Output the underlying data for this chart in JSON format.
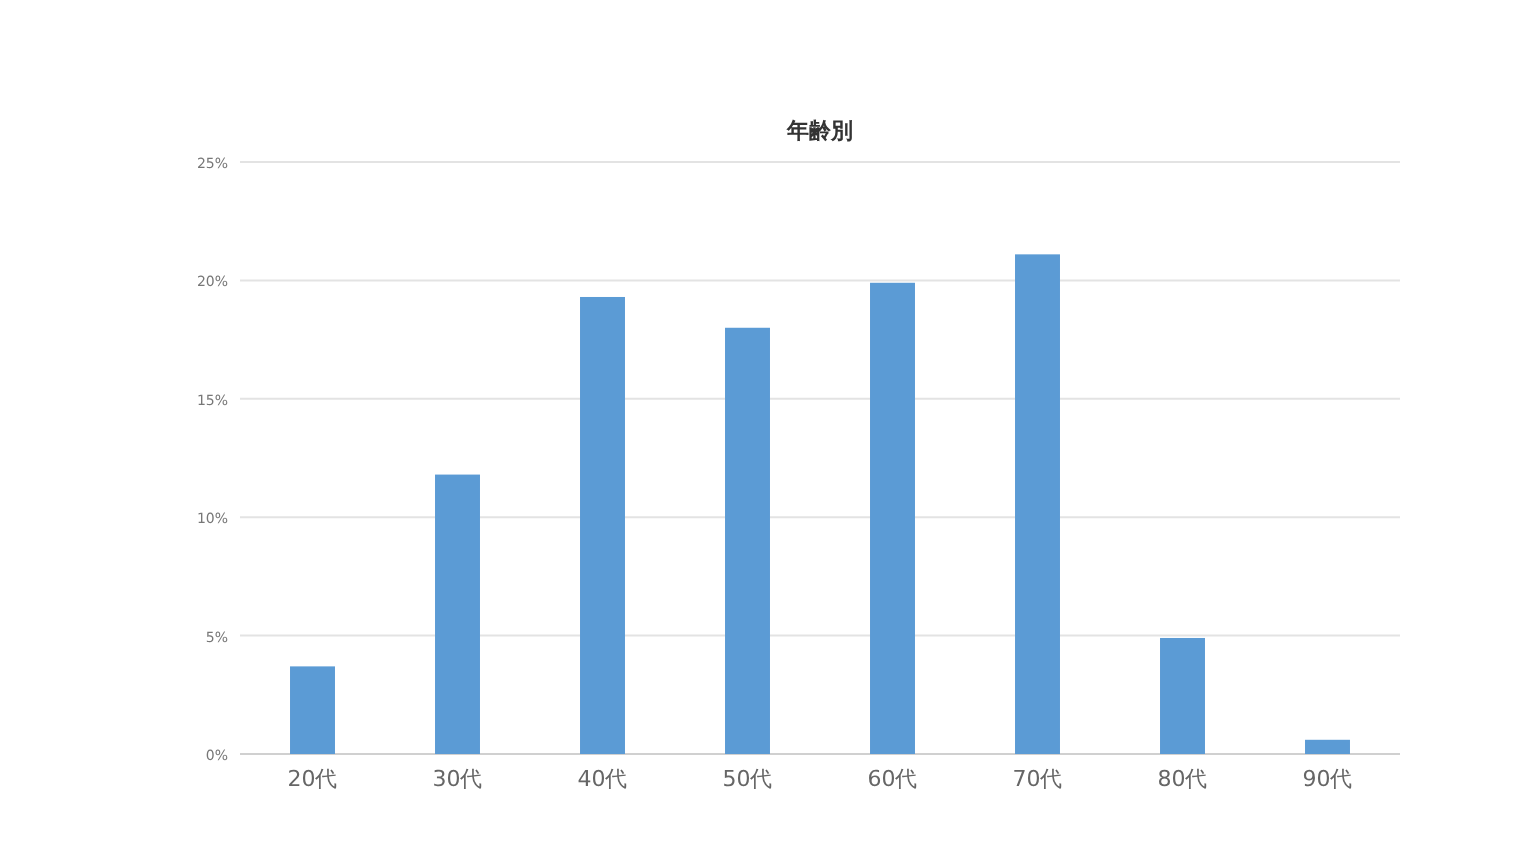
{
  "chart_data": {
    "type": "bar",
    "title": "年齢別",
    "categories": [
      "20代",
      "30代",
      "40代",
      "50代",
      "60代",
      "70代",
      "80代",
      "90代"
    ],
    "values": [
      3.7,
      11.8,
      19.3,
      18.0,
      19.9,
      21.1,
      4.9,
      0.6
    ],
    "color": "#5b9bd5",
    "ylim": [
      0,
      25
    ],
    "yticks": [
      {
        "value": 0,
        "label": "0%"
      },
      {
        "value": 5,
        "label": "5%"
      },
      {
        "value": 10,
        "label": "10%"
      },
      {
        "value": 15,
        "label": "15%"
      },
      {
        "value": 20,
        "label": "20%"
      },
      {
        "value": 25,
        "label": "25%"
      }
    ],
    "grid": "y"
  }
}
